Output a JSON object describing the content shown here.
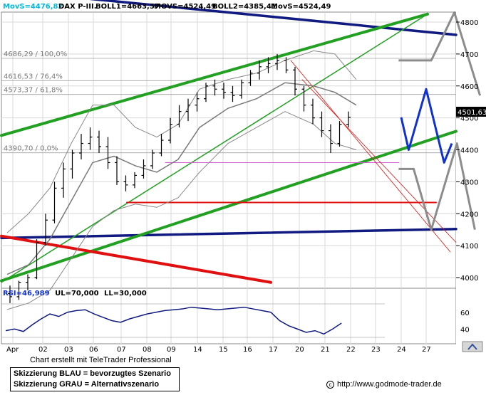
{
  "header": {
    "movs_label": "MovS=4476,82",
    "title": "DAX P-III.",
    "boll1": "BOLL1=4663,57",
    "movs2": "MOVS=4524,49",
    "boll2": "BOLL2=4385,41",
    "movs3": "MovS=4524,49"
  },
  "price_label": "4501,63",
  "fib_levels": [
    {
      "label": "4686,29 / 100,0%",
      "value": 4686.29
    },
    {
      "label": "4616,53 / 76,4%",
      "value": 4616.53
    },
    {
      "label": "4573,37 / 61,8%",
      "value": 4573.37
    },
    {
      "label": "4390,70 / 0,0%",
      "value": 4390.7
    }
  ],
  "rsi_header": {
    "rsi": "RSI=46,989",
    "ul": "UL=70,000",
    "ll": "LL=30,000"
  },
  "footer": {
    "credit": "Chart erstellt mit TeleTrader Professional",
    "legend_blue": "Skizzierung BLAU = bevorzugtes Szenario",
    "legend_grey": "Skizzierung GRAU = Alternativszenario",
    "url": "http://www.godmode-trader.de",
    "copyright_symbol": "c"
  },
  "colors": {
    "header_cyan": "#00b8d8",
    "green": "#22a022",
    "navy": "#101a80",
    "red": "#e01010",
    "blue": "#1030d0",
    "grey": "#8c8c8c",
    "magenta": "#d060d0"
  },
  "chart_data": {
    "type": "line",
    "title": "DAX P-III.",
    "x_ticks": [
      "Apr",
      "02",
      "03",
      "06",
      "07",
      "08",
      "09",
      "14",
      "15",
      "16",
      "17",
      "20",
      "21",
      "22",
      "23",
      "24",
      "27"
    ],
    "y_ticks": [
      4000,
      4100,
      4200,
      4300,
      4400,
      4500,
      4600,
      4700,
      4800
    ],
    "ylim": [
      3970,
      4835
    ],
    "ohlc": [
      [
        3950,
        3975,
        3920,
        3940
      ],
      [
        3940,
        3990,
        3930,
        3985
      ],
      [
        3985,
        4010,
        3960,
        4000
      ],
      [
        4000,
        4120,
        3995,
        4110
      ],
      [
        4110,
        4200,
        4100,
        4180
      ],
      [
        4180,
        4300,
        4170,
        4280
      ],
      [
        4280,
        4360,
        4250,
        4340
      ],
      [
        4340,
        4400,
        4310,
        4390
      ],
      [
        4390,
        4450,
        4370,
        4420
      ],
      [
        4420,
        4470,
        4400,
        4440
      ],
      [
        4440,
        4460,
        4390,
        4410
      ],
      [
        4410,
        4440,
        4340,
        4360
      ],
      [
        4360,
        4380,
        4290,
        4300
      ],
      [
        4300,
        4320,
        4270,
        4290
      ],
      [
        4290,
        4330,
        4280,
        4320
      ],
      [
        4320,
        4370,
        4310,
        4350
      ],
      [
        4350,
        4400,
        4340,
        4390
      ],
      [
        4390,
        4450,
        4380,
        4430
      ],
      [
        4430,
        4500,
        4420,
        4480
      ],
      [
        4480,
        4540,
        4470,
        4520
      ],
      [
        4520,
        4560,
        4490,
        4540
      ],
      [
        4540,
        4580,
        4520,
        4560
      ],
      [
        4560,
        4610,
        4550,
        4600
      ],
      [
        4600,
        4620,
        4570,
        4590
      ],
      [
        4590,
        4610,
        4560,
        4580
      ],
      [
        4580,
        4600,
        4550,
        4570
      ],
      [
        4570,
        4620,
        4560,
        4610
      ],
      [
        4610,
        4650,
        4600,
        4640
      ],
      [
        4640,
        4680,
        4620,
        4660
      ],
      [
        4660,
        4690,
        4640,
        4670
      ],
      [
        4670,
        4700,
        4650,
        4680
      ],
      [
        4680,
        4690,
        4640,
        4650
      ],
      [
        4650,
        4660,
        4570,
        4590
      ],
      [
        4590,
        4600,
        4520,
        4540
      ],
      [
        4540,
        4560,
        4480,
        4500
      ],
      [
        4500,
        4520,
        4440,
        4460
      ],
      [
        4460,
        4480,
        4390,
        4420
      ],
      [
        4420,
        4490,
        4410,
        4480
      ],
      [
        4480,
        4520,
        4470,
        4501.63
      ]
    ],
    "blue_scenario": [
      [
        22.0,
        4501.63
      ],
      [
        22.3,
        4400
      ],
      [
        23.0,
        4590
      ],
      [
        23.7,
        4360
      ],
      [
        24.0,
        4420
      ]
    ],
    "grey_scenario": [
      [
        21.9,
        4340
      ],
      [
        22.5,
        4340
      ],
      [
        23.2,
        4150
      ],
      [
        24.2,
        4420
      ],
      [
        24.9,
        4150
      ]
    ],
    "grey_scenario_upper": [
      [
        21.9,
        4680
      ],
      [
        23.2,
        4680
      ],
      [
        24.1,
        4830
      ],
      [
        25.1,
        4570
      ]
    ],
    "rsi": {
      "ylabel_ticks": [
        40,
        60
      ],
      "ul": 70,
      "ll": 30,
      "current": 46.989
    }
  }
}
